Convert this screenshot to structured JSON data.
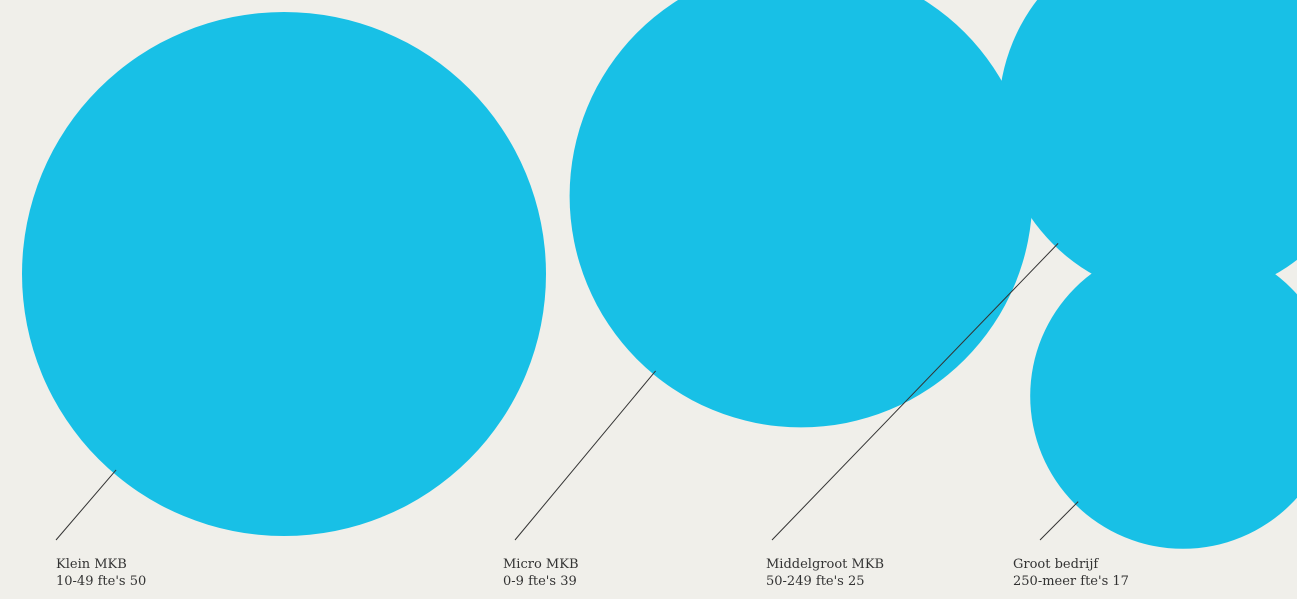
{
  "colors": {
    "background": "#f0efea",
    "bubble": "#18c0e6",
    "leader": "#333333",
    "text": "#333333"
  },
  "chart_data": {
    "type": "bubble",
    "title": "",
    "items": [
      {
        "name": "Klein MKB",
        "range": "10-49 fte's",
        "value": 50
      },
      {
        "name": "Micro MKB",
        "range": "0-9 fte's",
        "value": 39
      },
      {
        "name": "Middelgroot MKB",
        "range": "50-249 fte's",
        "value": 25
      },
      {
        "name": "Groot bedrijf",
        "range": "250-meer fte's",
        "value": 17
      }
    ]
  }
}
